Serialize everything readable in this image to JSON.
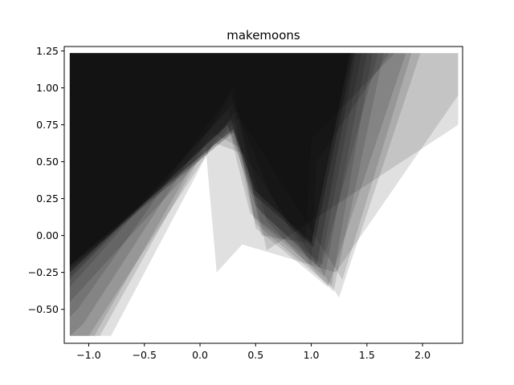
{
  "chart_data": {
    "type": "area",
    "title": "makemoons",
    "xlabel": "",
    "ylabel": "",
    "xlim": [
      -1.22,
      2.36
    ],
    "ylim": [
      -0.73,
      1.28
    ],
    "xticks": [
      -1.0,
      -0.5,
      0.0,
      0.5,
      1.0,
      1.5,
      2.0
    ],
    "xtick_labels": [
      "−1.0",
      "−0.5",
      "0.0",
      "0.5",
      "1.0",
      "1.5",
      "2.0"
    ],
    "yticks": [
      -0.5,
      -0.25,
      0.0,
      0.25,
      0.5,
      0.75,
      1.0,
      1.25
    ],
    "ytick_labels": [
      "−0.50",
      "−0.25",
      "0.00",
      "0.25",
      "0.50",
      "0.75",
      "1.00",
      "1.25"
    ],
    "grid": false,
    "fill_color": "#000000",
    "polygons": [
      {
        "opacity": 0.12,
        "points": [
          [
            -1.17,
            1.235
          ],
          [
            2.32,
            1.235
          ],
          [
            2.32,
            0.75
          ],
          [
            0.6,
            -0.1
          ],
          [
            0.4,
            0.55
          ],
          [
            0.12,
            0.63
          ],
          [
            -0.8,
            -0.68
          ],
          [
            -1.17,
            -0.68
          ]
        ]
      },
      {
        "opacity": 0.12,
        "points": [
          [
            -1.17,
            1.235
          ],
          [
            2.32,
            1.235
          ],
          [
            2.32,
            0.95
          ],
          [
            1.22,
            -0.25
          ],
          [
            0.38,
            -0.06
          ],
          [
            0.15,
            -0.25
          ],
          [
            0.05,
            0.6
          ],
          [
            -0.9,
            -0.68
          ],
          [
            -1.17,
            -0.68
          ]
        ]
      },
      {
        "opacity": 0.12,
        "points": [
          [
            -1.17,
            1.235
          ],
          [
            1.98,
            1.235
          ],
          [
            1.25,
            -0.42
          ],
          [
            0.35,
            0.6
          ],
          [
            0.1,
            0.7
          ],
          [
            -0.95,
            -0.68
          ],
          [
            -1.17,
            -0.68
          ]
        ]
      },
      {
        "opacity": 0.12,
        "points": [
          [
            -1.17,
            1.235
          ],
          [
            1.9,
            1.235
          ],
          [
            1.28,
            -0.3
          ],
          [
            0.32,
            0.85
          ],
          [
            -1.0,
            -0.68
          ],
          [
            -1.17,
            -0.68
          ]
        ]
      },
      {
        "opacity": 0.12,
        "points": [
          [
            -1.17,
            1.235
          ],
          [
            1.85,
            1.235
          ],
          [
            1.15,
            -0.35
          ],
          [
            0.5,
            0.05
          ],
          [
            0.28,
            0.95
          ],
          [
            -1.05,
            -0.6
          ],
          [
            -1.17,
            -0.68
          ]
        ]
      },
      {
        "opacity": 0.12,
        "points": [
          [
            -1.17,
            1.235
          ],
          [
            1.75,
            1.235
          ],
          [
            1.0,
            0.65
          ],
          [
            0.95,
            -0.05
          ],
          [
            0.55,
            0.0
          ],
          [
            0.3,
            1.0
          ],
          [
            -1.1,
            -0.5
          ],
          [
            -1.17,
            -0.55
          ]
        ]
      },
      {
        "opacity": 0.12,
        "points": [
          [
            -1.17,
            1.235
          ],
          [
            1.7,
            1.235
          ],
          [
            1.05,
            0.5
          ],
          [
            1.0,
            -0.2
          ],
          [
            0.65,
            0.25
          ],
          [
            0.35,
            0.8
          ],
          [
            -1.17,
            -0.45
          ]
        ]
      },
      {
        "opacity": 0.12,
        "points": [
          [
            -1.17,
            1.235
          ],
          [
            1.65,
            1.235
          ],
          [
            1.2,
            -0.38
          ],
          [
            0.6,
            0.1
          ],
          [
            0.3,
            0.9
          ],
          [
            -1.17,
            -0.35
          ]
        ]
      },
      {
        "opacity": 0.12,
        "points": [
          [
            -1.17,
            1.235
          ],
          [
            1.6,
            1.235
          ],
          [
            1.1,
            -0.2
          ],
          [
            0.55,
            0.15
          ],
          [
            0.25,
            0.85
          ],
          [
            -1.17,
            -0.3
          ]
        ]
      },
      {
        "opacity": 0.12,
        "points": [
          [
            -1.17,
            1.235
          ],
          [
            1.55,
            1.235
          ],
          [
            1.18,
            -0.35
          ],
          [
            0.5,
            0.08
          ],
          [
            0.3,
            0.8
          ],
          [
            -1.17,
            -0.25
          ]
        ]
      },
      {
        "opacity": 0.12,
        "points": [
          [
            -1.17,
            1.235
          ],
          [
            1.5,
            1.235
          ],
          [
            1.12,
            -0.28
          ],
          [
            0.48,
            0.12
          ],
          [
            0.28,
            0.78
          ],
          [
            -1.17,
            -0.28
          ]
        ]
      },
      {
        "opacity": 0.12,
        "points": [
          [
            -1.17,
            1.235
          ],
          [
            1.45,
            1.235
          ],
          [
            1.08,
            -0.22
          ],
          [
            0.45,
            0.15
          ],
          [
            0.25,
            0.75
          ],
          [
            -1.17,
            -0.25
          ]
        ]
      },
      {
        "opacity": 0.18,
        "points": [
          [
            -1.17,
            1.235
          ],
          [
            1.4,
            1.235
          ],
          [
            1.05,
            -0.2
          ],
          [
            0.5,
            0.2
          ],
          [
            0.25,
            0.75
          ],
          [
            -1.17,
            -0.25
          ]
        ]
      },
      {
        "opacity": 0.25,
        "points": [
          [
            -1.17,
            1.235
          ],
          [
            1.38,
            1.235
          ],
          [
            1.02,
            -0.08
          ],
          [
            0.48,
            0.28
          ],
          [
            0.3,
            0.7
          ],
          [
            -1.17,
            -0.22
          ]
        ]
      },
      {
        "opacity": 0.35,
        "points": [
          [
            -1.17,
            1.235
          ],
          [
            1.35,
            1.235
          ],
          [
            1.0,
            -0.05
          ],
          [
            0.5,
            0.3
          ],
          [
            0.3,
            0.72
          ],
          [
            -1.17,
            -0.2
          ]
        ]
      }
    ]
  }
}
